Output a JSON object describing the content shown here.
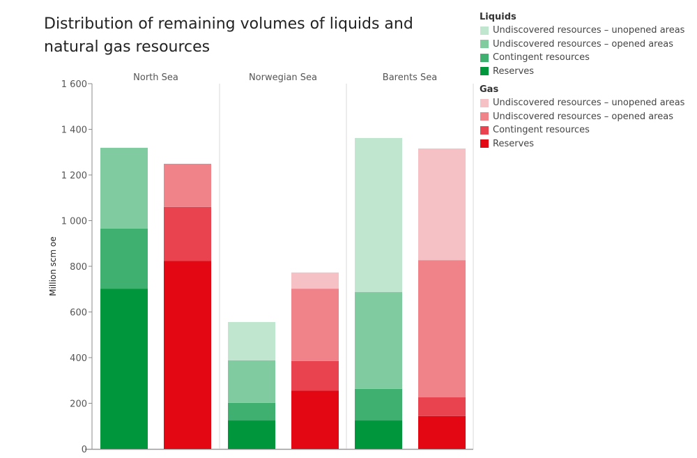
{
  "chart_data": {
    "type": "bar",
    "stacked": true,
    "title": "Distribution of remaining volumes of liquids and natural gas resources",
    "ylabel": "Million scm oe",
    "xlabel": "",
    "ylim": [
      0,
      1600
    ],
    "yticks": [
      0,
      200,
      400,
      600,
      800,
      1000,
      1200,
      1400,
      1600
    ],
    "ytick_labels": [
      "0",
      "200",
      "400",
      "600",
      "800",
      "1 000",
      "1 200",
      "1 400",
      "1 600"
    ],
    "grid": false,
    "legend_position": "top-right",
    "facets": [
      "North Sea",
      "Norwegian Sea",
      "Barents Sea"
    ],
    "groups": [
      {
        "name": "Liquids",
        "categories": [
          "Reserves",
          "Contingent resources",
          "Undiscovered resources – opened areas",
          "Undiscovered resources – unopened areas"
        ],
        "colors": [
          "#00963C",
          "#40B070",
          "#80CCA0",
          "#C0E6D0"
        ],
        "series": [
          {
            "name": "Reserves",
            "values": [
              702,
              125,
              125
            ]
          },
          {
            "name": "Contingent resources",
            "values": [
              263,
              77,
              138
            ]
          },
          {
            "name": "Undiscovered resources – opened areas",
            "values": [
              354,
              186,
              424
            ]
          },
          {
            "name": "Undiscovered resources – unopened areas",
            "values": [
              0,
              168,
              675
            ]
          }
        ],
        "totals": [
          1319,
          556,
          1362
        ]
      },
      {
        "name": "Gas",
        "categories": [
          "Reserves",
          "Contingent resources",
          "Undiscovered resources – opened areas",
          "Undiscovered resources – unopened areas"
        ],
        "colors": [
          "#E30613",
          "#E9434F",
          "#F0838A",
          "#F6C1C5"
        ],
        "series": [
          {
            "name": "Reserves",
            "values": [
              824,
              256,
              144
            ]
          },
          {
            "name": "Contingent resources",
            "values": [
              236,
              129,
              82
            ]
          },
          {
            "name": "Undiscovered resources – opened areas",
            "values": [
              189,
              317,
              601
            ]
          },
          {
            "name": "Undiscovered resources – unopened areas",
            "values": [
              0,
              71,
              489
            ]
          }
        ],
        "totals": [
          1249,
          773,
          1316
        ]
      }
    ]
  },
  "legend": {
    "groups": [
      {
        "title": "Liquids",
        "items": [
          {
            "label": "Undiscovered resources – unopened areas",
            "color": "#C0E6D0"
          },
          {
            "label": "Undiscovered resources – opened areas",
            "color": "#80CCA0"
          },
          {
            "label": "Contingent resources",
            "color": "#40B070"
          },
          {
            "label": "Reserves",
            "color": "#00963C"
          }
        ]
      },
      {
        "title": "Gas",
        "items": [
          {
            "label": "Undiscovered resources – unopened areas",
            "color": "#F6C1C5"
          },
          {
            "label": "Undiscovered resources – opened areas",
            "color": "#F0838A"
          },
          {
            "label": "Contingent resources",
            "color": "#E9434F"
          },
          {
            "label": "Reserves",
            "color": "#E30613"
          }
        ]
      }
    ]
  }
}
